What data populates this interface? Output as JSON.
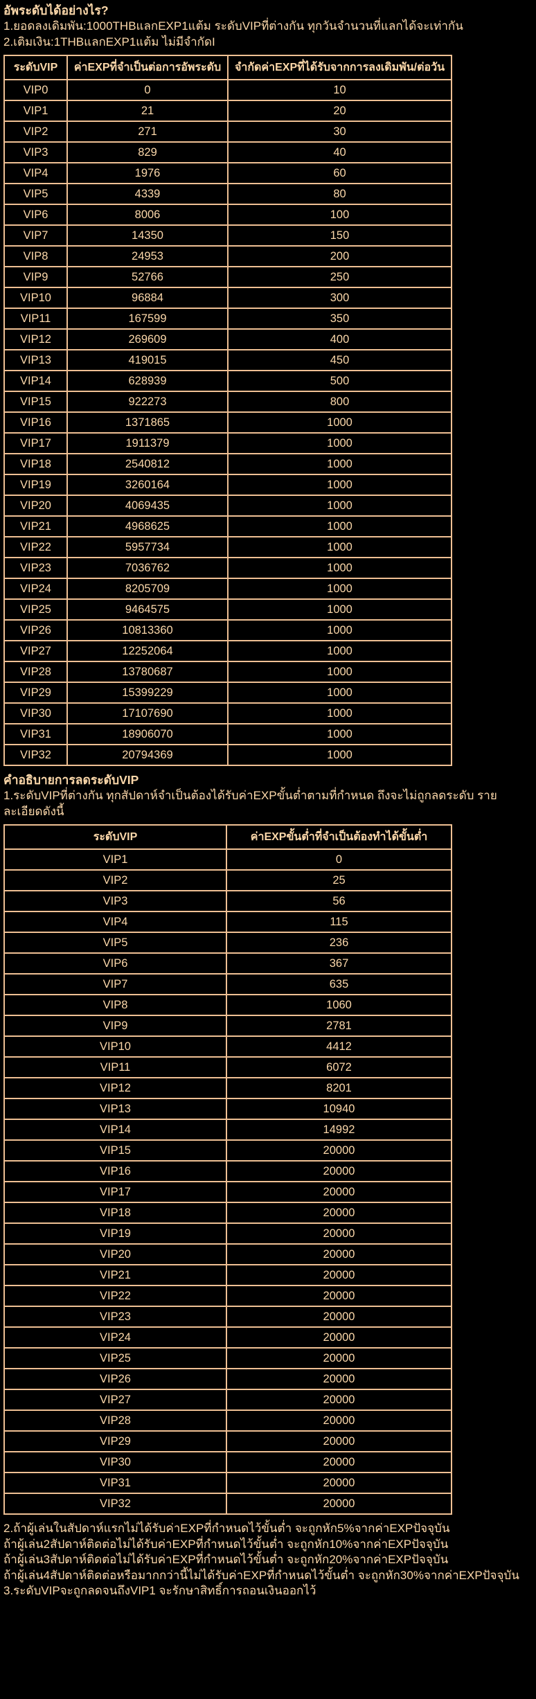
{
  "page": {
    "bg_color": "#000000",
    "text_color": "#fcd8aa",
    "border_color": "#efc094"
  },
  "intro": {
    "heading": "อัพระดับได้อย่างไร?",
    "lines": [
      "1.ยอดลงเดิมพัน:1000THBแลกEXP1แต้ม ระดับVIPที่ต่างกัน ทุกวันจำนวนที่แลกได้จะเท่ากัน",
      "2.เติมเงิน:1THBแลกEXP1แต้ม ไม่มีจำกัดI"
    ]
  },
  "upgrade_table": {
    "headers": [
      "ระดับVIP",
      "ค่าEXPที่จำเป็นต่อการอัพระดับ",
      "จำกัดค่าEXPที่ได้รับจากการลงเดิมพัน/ต่อวัน"
    ],
    "rows": [
      [
        "VIP0",
        "0",
        "10"
      ],
      [
        "VIP1",
        "21",
        "20"
      ],
      [
        "VIP2",
        "271",
        "30"
      ],
      [
        "VIP3",
        "829",
        "40"
      ],
      [
        "VIP4",
        "1976",
        "60"
      ],
      [
        "VIP5",
        "4339",
        "80"
      ],
      [
        "VIP6",
        "8006",
        "100"
      ],
      [
        "VIP7",
        "14350",
        "150"
      ],
      [
        "VIP8",
        "24953",
        "200"
      ],
      [
        "VIP9",
        "52766",
        "250"
      ],
      [
        "VIP10",
        "96884",
        "300"
      ],
      [
        "VIP11",
        "167599",
        "350"
      ],
      [
        "VIP12",
        "269609",
        "400"
      ],
      [
        "VIP13",
        "419015",
        "450"
      ],
      [
        "VIP14",
        "628939",
        "500"
      ],
      [
        "VIP15",
        "922273",
        "800"
      ],
      [
        "VIP16",
        "1371865",
        "1000"
      ],
      [
        "VIP17",
        "1911379",
        "1000"
      ],
      [
        "VIP18",
        "2540812",
        "1000"
      ],
      [
        "VIP19",
        "3260164",
        "1000"
      ],
      [
        "VIP20",
        "4069435",
        "1000"
      ],
      [
        "VIP21",
        "4968625",
        "1000"
      ],
      [
        "VIP22",
        "5957734",
        "1000"
      ],
      [
        "VIP23",
        "7036762",
        "1000"
      ],
      [
        "VIP24",
        "8205709",
        "1000"
      ],
      [
        "VIP25",
        "9464575",
        "1000"
      ],
      [
        "VIP26",
        "10813360",
        "1000"
      ],
      [
        "VIP27",
        "12252064",
        "1000"
      ],
      [
        "VIP28",
        "13780687",
        "1000"
      ],
      [
        "VIP29",
        "15399229",
        "1000"
      ],
      [
        "VIP30",
        "17107690",
        "1000"
      ],
      [
        "VIP31",
        "18906070",
        "1000"
      ],
      [
        "VIP32",
        "20794369",
        "1000"
      ]
    ]
  },
  "demotion": {
    "heading": "คำอธิบายการลดระดับVIP",
    "line": "1.ระดับVIPที่ต่างกัน ทุกสัปดาห์จำเป็นต้องได้รับค่าEXPขั้นต่ำตามที่กำหนด ถึงจะไม่ถูกลดระดับ รายละเอียดดังนี้"
  },
  "weekly_table": {
    "headers": [
      "ระดับVIP",
      "ค่าEXPขั้นต่ำที่จำเป็นต้องทำได้ขั้นต่ำ"
    ],
    "rows": [
      [
        "VIP1",
        "0"
      ],
      [
        "VIP2",
        "25"
      ],
      [
        "VIP3",
        "56"
      ],
      [
        "VIP4",
        "115"
      ],
      [
        "VIP5",
        "236"
      ],
      [
        "VIP6",
        "367"
      ],
      [
        "VIP7",
        "635"
      ],
      [
        "VIP8",
        "1060"
      ],
      [
        "VIP9",
        "2781"
      ],
      [
        "VIP10",
        "4412"
      ],
      [
        "VIP11",
        "6072"
      ],
      [
        "VIP12",
        "8201"
      ],
      [
        "VIP13",
        "10940"
      ],
      [
        "VIP14",
        "14992"
      ],
      [
        "VIP15",
        "20000"
      ],
      [
        "VIP16",
        "20000"
      ],
      [
        "VIP17",
        "20000"
      ],
      [
        "VIP18",
        "20000"
      ],
      [
        "VIP19",
        "20000"
      ],
      [
        "VIP20",
        "20000"
      ],
      [
        "VIP21",
        "20000"
      ],
      [
        "VIP22",
        "20000"
      ],
      [
        "VIP23",
        "20000"
      ],
      [
        "VIP24",
        "20000"
      ],
      [
        "VIP25",
        "20000"
      ],
      [
        "VIP26",
        "20000"
      ],
      [
        "VIP27",
        "20000"
      ],
      [
        "VIP28",
        "20000"
      ],
      [
        "VIP29",
        "20000"
      ],
      [
        "VIP30",
        "20000"
      ],
      [
        "VIP31",
        "20000"
      ],
      [
        "VIP32",
        "20000"
      ]
    ]
  },
  "footer": {
    "lines": [
      "2.ถ้าผู้เล่นในสัปดาห์แรกไม่ได้รับค่าEXPที่กำหนดไว้ขั้นต่ำ จะถูกหัก5%จากค่าEXPปัจจุบัน",
      "ถ้าผู้เล่น2สัปดาห์ติดต่อไม่ได้รับค่าEXPที่กำหนดไว้ขั้นต่ำ จะถูกหัก10%จากค่าEXPปัจจุบัน",
      "ถ้าผู้เล่น3สัปดาห์ติดต่อไม่ได้รับค่าEXPที่กำหนดไว้ขั้นต่ำ จะถูกหัก20%จากค่าEXPปัจจุบัน",
      "ถ้าผู้เล่น4สัปดาห์ติดต่อหรือมากกว่านี้ไม่ได้รับค่าEXPที่กำหนดไว้ขั้นต่ำ จะถูกหัก30%จากค่าEXPปัจจุบัน",
      "3.ระดับVIPจะถูกลดจนถึงVIP1 จะรักษาสิทธิ์การถอนเงินออกไว้"
    ]
  }
}
